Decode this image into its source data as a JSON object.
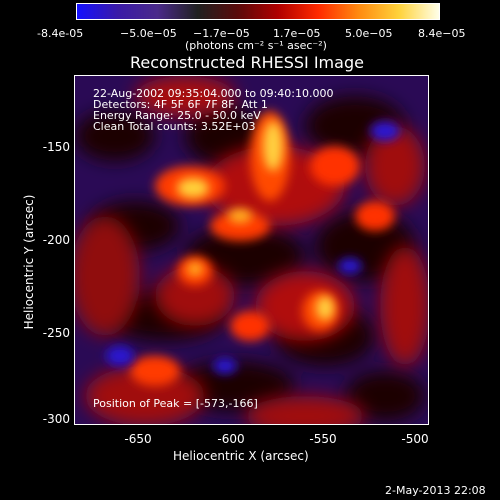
{
  "colorbar": {
    "colors": [
      "#1410ff",
      "#3a1aa8",
      "#4a2a8a",
      "#202020",
      "#5a0a0a",
      "#b00000",
      "#ff2a00",
      "#ff8a10",
      "#ffd23a",
      "#ffffe8"
    ],
    "ticks": [
      "-8.4e-05",
      "−5.0e−05",
      "−1.7e−05",
      "1.7e−05",
      "5.0e−05",
      "8.4e−05"
    ],
    "units": "(photons cm⁻² s⁻¹ asec⁻²)"
  },
  "title": "Reconstructed RHESSI Image",
  "info": {
    "line1": "22-Aug-2002 09:35:04.000 to 09:40:10.000",
    "line2": "Detectors: 4F 5F 6F 7F 8F, Att 1",
    "line3": "Energy Range: 25.0 - 50.0 keV",
    "line4": "Clean    Total counts: 3.52E+03"
  },
  "peak_label": "Position of Peak = [-573,-166]",
  "axes": {
    "xlabel": "Heliocentric X (arcsec)",
    "ylabel": "Heliocentric Y (arcsec)",
    "x_ticks": [
      "-650",
      "-600",
      "-550",
      "-500"
    ],
    "y_ticks": [
      "-150",
      "-200",
      "-250",
      "-300"
    ]
  },
  "footer_date": "2-May-2013 22:08"
}
